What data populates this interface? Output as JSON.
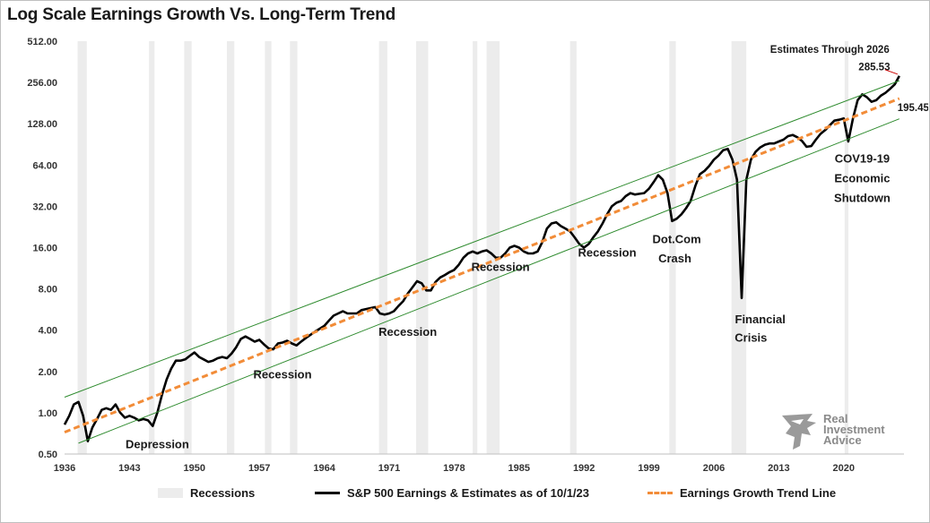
{
  "title": "Log Scale Earnings Growth Vs. Long-Term Trend",
  "chart_data": {
    "type": "line",
    "title": "Log Scale Earnings Growth Vs. Long-Term Trend",
    "y_scale": "log2",
    "ylim": [
      0.5,
      512
    ],
    "xlim": [
      1936,
      2026.5
    ],
    "y_ticks": [
      "0.50",
      "1.00",
      "2.00",
      "4.00",
      "8.00",
      "16.00",
      "32.00",
      "64.00",
      "128.00",
      "256.00",
      "512.00"
    ],
    "y_tick_values": [
      0.5,
      1,
      2,
      4,
      8,
      16,
      32,
      64,
      128,
      256,
      512
    ],
    "x_ticks": [
      "1936",
      "1943",
      "1950",
      "1957",
      "1964",
      "1971",
      "1978",
      "1985",
      "1992",
      "1999",
      "2006",
      "2013",
      "2020"
    ],
    "x_tick_values": [
      1936,
      1943,
      1950,
      1957,
      1964,
      1971,
      1978,
      1985,
      1992,
      1999,
      2006,
      2013,
      2020
    ],
    "grid": false,
    "legend_position": "bottom",
    "recessions": [
      [
        1937.4,
        1938.4
      ],
      [
        1945.1,
        1945.7
      ],
      [
        1948.9,
        1949.7
      ],
      [
        1953.5,
        1954.3
      ],
      [
        1957.6,
        1958.3
      ],
      [
        1960.3,
        1961.1
      ],
      [
        1969.9,
        1970.8
      ],
      [
        1973.9,
        1975.2
      ],
      [
        1980.0,
        1980.5
      ],
      [
        1981.5,
        1982.9
      ],
      [
        1990.5,
        1991.2
      ],
      [
        2001.2,
        2001.9
      ],
      [
        2007.9,
        2009.5
      ],
      [
        2020.1,
        2020.5
      ]
    ],
    "series": [
      {
        "name": "S&P 500 Earnings & Estimates as of 10/1/23",
        "color": "#000000",
        "x": [
          1936,
          1936.5,
          1937,
          1937.5,
          1938,
          1938.5,
          1939,
          1939.5,
          1940,
          1940.5,
          1941,
          1941.5,
          1942,
          1942.5,
          1943,
          1943.5,
          1944,
          1944.5,
          1945,
          1945.5,
          1946,
          1946.5,
          1947,
          1947.5,
          1948,
          1948.5,
          1949,
          1949.5,
          1950,
          1950.5,
          1951,
          1951.5,
          1952,
          1952.5,
          1953,
          1953.5,
          1954,
          1954.5,
          1955,
          1955.5,
          1956,
          1956.5,
          1957,
          1957.5,
          1958,
          1958.5,
          1959,
          1959.5,
          1960,
          1960.5,
          1961,
          1961.5,
          1962,
          1962.5,
          1963,
          1963.5,
          1964,
          1964.5,
          1965,
          1965.5,
          1966,
          1966.5,
          1967,
          1967.5,
          1968,
          1968.5,
          1969,
          1969.5,
          1970,
          1970.5,
          1971,
          1971.5,
          1972,
          1972.5,
          1973,
          1973.5,
          1974,
          1974.5,
          1975,
          1975.5,
          1976,
          1976.5,
          1977,
          1977.5,
          1978,
          1978.5,
          1979,
          1979.5,
          1980,
          1980.5,
          1981,
          1981.5,
          1982,
          1982.5,
          1983,
          1983.5,
          1984,
          1984.5,
          1985,
          1985.5,
          1986,
          1986.5,
          1987,
          1987.5,
          1988,
          1988.5,
          1989,
          1989.5,
          1990,
          1990.5,
          1991,
          1991.5,
          1992,
          1992.5,
          1993,
          1993.5,
          1994,
          1994.5,
          1995,
          1995.5,
          1996,
          1996.5,
          1997,
          1997.5,
          1998,
          1998.5,
          1999,
          1999.5,
          2000,
          2000.5,
          2001,
          2001.5,
          2002,
          2002.5,
          2003,
          2003.5,
          2004,
          2004.5,
          2005,
          2005.5,
          2006,
          2006.5,
          2007,
          2007.5,
          2008,
          2008.5,
          2009,
          2009.5,
          2010,
          2010.5,
          2011,
          2011.5,
          2012,
          2012.5,
          2013,
          2013.5,
          2014,
          2014.5,
          2015,
          2015.5,
          2016,
          2016.5,
          2017,
          2017.5,
          2018,
          2018.5,
          2019,
          2019.5,
          2020,
          2020.5,
          2021,
          2021.5,
          2022,
          2022.5,
          2023,
          2023.5,
          2024,
          2024.5,
          2025,
          2025.5,
          2026
        ],
        "values": [
          0.82,
          0.95,
          1.15,
          1.2,
          0.95,
          0.62,
          0.78,
          0.9,
          1.05,
          1.08,
          1.05,
          1.15,
          1.0,
          0.92,
          0.95,
          0.92,
          0.88,
          0.9,
          0.88,
          0.8,
          1.0,
          1.35,
          1.75,
          2.1,
          2.4,
          2.4,
          2.45,
          2.6,
          2.75,
          2.55,
          2.45,
          2.35,
          2.4,
          2.5,
          2.55,
          2.5,
          2.7,
          3.0,
          3.45,
          3.6,
          3.45,
          3.3,
          3.4,
          3.15,
          2.95,
          2.9,
          3.2,
          3.25,
          3.35,
          3.2,
          3.1,
          3.3,
          3.5,
          3.7,
          3.9,
          4.1,
          4.3,
          4.7,
          5.1,
          5.3,
          5.5,
          5.3,
          5.3,
          5.3,
          5.6,
          5.7,
          5.8,
          5.9,
          5.3,
          5.2,
          5.3,
          5.5,
          6.0,
          6.5,
          7.4,
          8.2,
          9.1,
          8.8,
          7.8,
          7.8,
          9.0,
          9.7,
          10.1,
          10.6,
          11.0,
          12.0,
          13.5,
          14.5,
          15.0,
          14.5,
          15.0,
          15.3,
          14.5,
          13.5,
          13.5,
          14.5,
          16.0,
          16.5,
          16.0,
          15.0,
          14.5,
          14.5,
          15.0,
          17.5,
          22.0,
          24.0,
          24.5,
          23.0,
          22.0,
          21.0,
          19.0,
          17.0,
          16.0,
          17.0,
          19.0,
          21.0,
          24.0,
          28.0,
          32.0,
          34.0,
          35.0,
          38.0,
          40.0,
          39.0,
          39.5,
          40.0,
          43.0,
          48.0,
          54.0,
          50.0,
          40.0,
          25.0,
          26.0,
          28.0,
          31.0,
          35.0,
          45.0,
          55.0,
          58.0,
          63.0,
          70.0,
          75.0,
          82.0,
          84.0,
          70.0,
          50.0,
          6.86,
          50.0,
          70.0,
          80.0,
          86.0,
          90.0,
          92.0,
          92.0,
          95.0,
          98.0,
          104.0,
          106.0,
          102.0,
          96.0,
          87.0,
          88.0,
          98.0,
          108.0,
          115.0,
          125.0,
          135.0,
          137.0,
          140.0,
          95.0,
          140.0,
          190.0,
          210.0,
          200.0,
          185.0,
          190.0,
          205.0,
          215.0,
          230.0,
          248.0,
          285.53
        ]
      },
      {
        "name": "Earnings Growth Trend Line",
        "color": "#f28c38",
        "style": "dashed",
        "x": [
          1936,
          2026
        ],
        "values": [
          0.722,
          195.45
        ]
      },
      {
        "name": "",
        "color": "#2e8b2e",
        "style": "upper-channel",
        "x": [
          1936,
          2026
        ],
        "values": [
          1.3,
          264
        ]
      },
      {
        "name": "",
        "color": "#2e8b2e",
        "style": "lower-channel",
        "x": [
          1937.5,
          2026
        ],
        "values": [
          0.6,
          139
        ]
      }
    ],
    "annotations": [
      {
        "text": "Depression",
        "x": 1946.0,
        "y": 0.55
      },
      {
        "text": "Recession",
        "x": 1959.5,
        "y": 1.78
      },
      {
        "text": "Recession",
        "x": 1973.0,
        "y": 3.65
      },
      {
        "text": "Recession",
        "x": 1983.0,
        "y": 10.8
      },
      {
        "text": "Recession",
        "x": 1994.5,
        "y": 13.8
      },
      {
        "text": "Dot.Com",
        "x": 2002.0,
        "y": 17.3
      },
      {
        "text": "Crash",
        "x": 2001.8,
        "y": 12.5
      },
      {
        "text": "Financial",
        "x": 2011.0,
        "y": 4.5
      },
      {
        "text": "Crisis",
        "x": 2010.0,
        "y": 3.3
      },
      {
        "text": "COV19-19",
        "x": 2022.0,
        "y": 67.0
      },
      {
        "text": "Economic",
        "x": 2022.0,
        "y": 48.0
      },
      {
        "text": "Shutdown",
        "x": 2022.0,
        "y": 34.5
      },
      {
        "text": "Estimates Through 2026",
        "x": 2018.5,
        "y": 420.0
      },
      {
        "text": "285.53",
        "x": 2023.3,
        "y": 315.0,
        "color": "#cc0000"
      },
      {
        "text": "195.45",
        "x": 2027.5,
        "y": 158.0
      }
    ]
  },
  "legend": {
    "recessions": "Recessions",
    "earnings": "S&P 500 Earnings & Estimates as of 10/1/23",
    "trend": "Earnings Growth Trend Line"
  },
  "logo": {
    "line1": "Real",
    "line2": "Investment",
    "line3": "Advice",
    "icon": "eagle-head-icon"
  },
  "colors": {
    "earnings": "#000000",
    "trend": "#f28c38",
    "channel": "#2e8b2e",
    "recession": "#ececec",
    "highlight": "#cc0000"
  }
}
